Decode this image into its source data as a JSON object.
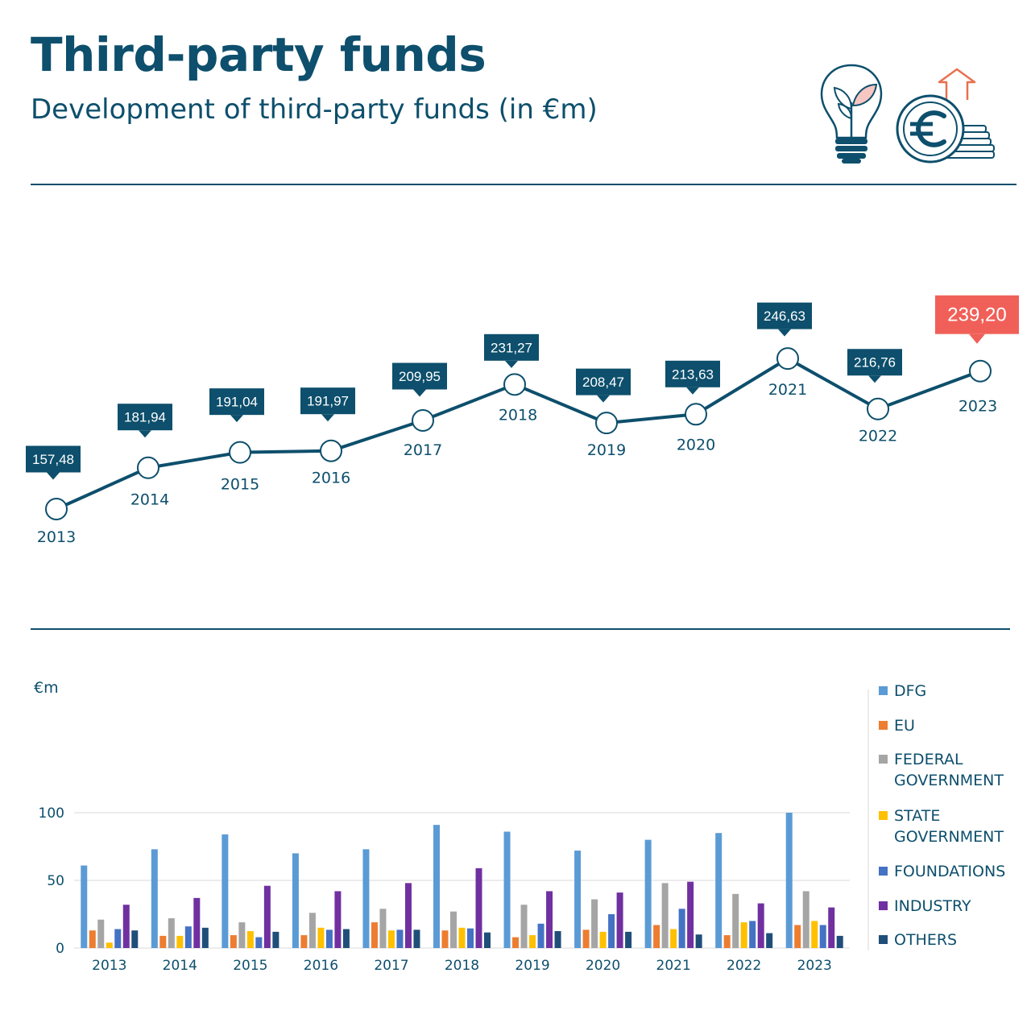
{
  "header": {
    "title": "Third-party funds",
    "subtitle": "Development of third-party funds (in €m)"
  },
  "icons": [
    "lightbulb-plant-icon",
    "euro-coins-growth-icon"
  ],
  "colors": {
    "primary": "#0d4f6c",
    "highlight": "#f06058",
    "icon_accent": "#e8704f"
  },
  "chart_data": [
    {
      "type": "line",
      "x": [
        "2013",
        "2014",
        "2015",
        "2016",
        "2017",
        "2018",
        "2019",
        "2020",
        "2021",
        "2022",
        "2023"
      ],
      "values": [
        157.48,
        181.94,
        191.04,
        191.97,
        209.95,
        231.27,
        208.47,
        213.63,
        246.63,
        216.76,
        239.2
      ],
      "value_labels": [
        "157,48",
        "181,94",
        "191,04",
        "191,97",
        "209,95",
        "231,27",
        "208,47",
        "213,63",
        "246,63",
        "216,76",
        "239,20"
      ],
      "highlight_index": 10,
      "grid": false
    },
    {
      "type": "bar",
      "ylabel": "€m",
      "ylim": [
        0,
        100
      ],
      "yticks": [
        0,
        50,
        100
      ],
      "grid": true,
      "legend_position": "right",
      "categories": [
        "2013",
        "2014",
        "2015",
        "2016",
        "2017",
        "2018",
        "2019",
        "2020",
        "2021",
        "2022",
        "2023"
      ],
      "series": [
        {
          "name": "DFG",
          "color": "#5b9bd5",
          "values": [
            61,
            73,
            84,
            70,
            73,
            91,
            86,
            72,
            80,
            85,
            100
          ]
        },
        {
          "name": "EU",
          "color": "#ed7d31",
          "values": [
            13,
            9,
            9.5,
            9.5,
            19,
            13,
            8,
            13.5,
            17,
            9.5,
            17
          ]
        },
        {
          "name": "FEDERAL GOVERNMENT",
          "color": "#a5a5a5",
          "values": [
            21,
            22,
            19,
            26,
            29,
            27,
            32,
            36,
            48,
            40,
            42
          ]
        },
        {
          "name": "STATE GOVERNMENT",
          "color": "#ffc000",
          "values": [
            4,
            9,
            12.5,
            15,
            13,
            15,
            9.5,
            12,
            14,
            19,
            20
          ]
        },
        {
          "name": "FOUNDATIONS",
          "color": "#4472c4",
          "values": [
            14,
            16,
            8,
            13.5,
            13.5,
            14.5,
            18,
            25,
            29,
            20,
            17
          ]
        },
        {
          "name": "INDUSTRY",
          "color": "#7030a0",
          "values": [
            32,
            37,
            46,
            42,
            48,
            59,
            42,
            41,
            49,
            33,
            30
          ]
        },
        {
          "name": "OTHERS",
          "color": "#1f4e79",
          "values": [
            13,
            15,
            12,
            14,
            13.5,
            11.5,
            12.5,
            12,
            10,
            11,
            9
          ]
        }
      ]
    }
  ]
}
